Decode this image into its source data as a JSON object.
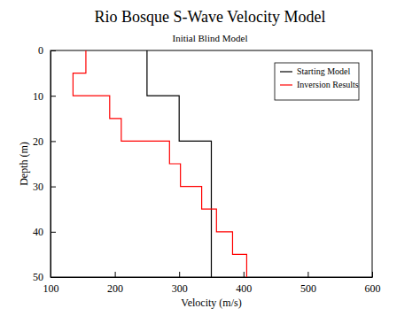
{
  "chart_data": {
    "type": "line",
    "title": "Rio Bosque S-Wave Velocity Model",
    "subtitle": "Initial Blind Model",
    "x_label": "Velocity (m/s)",
    "y_label": "Depth (m)",
    "xlim": [
      100,
      600
    ],
    "xticks": [
      100,
      200,
      300,
      400,
      500,
      600
    ],
    "ylim": [
      50,
      0
    ],
    "yticks": [
      0,
      10,
      20,
      30,
      40,
      50
    ],
    "legend": "upper right",
    "grid": false,
    "series": [
      {
        "name": "Starting Model",
        "color": "#000000",
        "line_style": "step",
        "x": [
          250,
          250,
          300,
          300,
          350,
          350
        ],
        "values": [
          0,
          10,
          10,
          20,
          20,
          50
        ]
      },
      {
        "name": "Inversion Results",
        "color": "#ff0000",
        "line_style": "step",
        "x": [
          155,
          155,
          135,
          135,
          192,
          192,
          210,
          210,
          285,
          285,
          302,
          302,
          335,
          335,
          358,
          358,
          383,
          383,
          405,
          405
        ],
        "values": [
          0,
          5,
          5,
          10,
          10,
          15,
          15,
          20,
          20,
          25,
          25,
          30,
          30,
          35,
          35,
          40,
          40,
          45,
          45,
          50
        ]
      }
    ]
  }
}
